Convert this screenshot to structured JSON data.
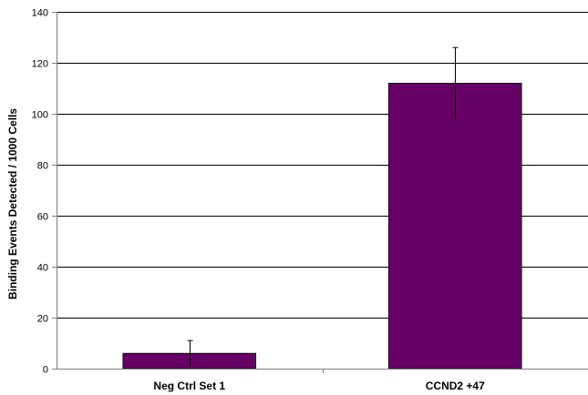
{
  "chart_data": {
    "type": "bar",
    "title": "",
    "xlabel": "",
    "ylabel": "Binding Events Detected / 1000 Cells",
    "categories": [
      "Neg Ctrl Set 1",
      "CCND2 +47"
    ],
    "values": [
      6,
      112
    ],
    "error": [
      5,
      14
    ],
    "ylim": [
      0,
      140
    ],
    "yticks": [
      0,
      20,
      40,
      60,
      80,
      100,
      120,
      140
    ],
    "ytick_labels": [
      "0",
      "20",
      "40",
      "60",
      "80",
      "100",
      "120",
      "140"
    ],
    "grid": true,
    "legend": "none",
    "colors": {
      "bar": "#660066",
      "bar_edge": "#000000",
      "grid": "#000000",
      "axis": "#808080"
    }
  }
}
